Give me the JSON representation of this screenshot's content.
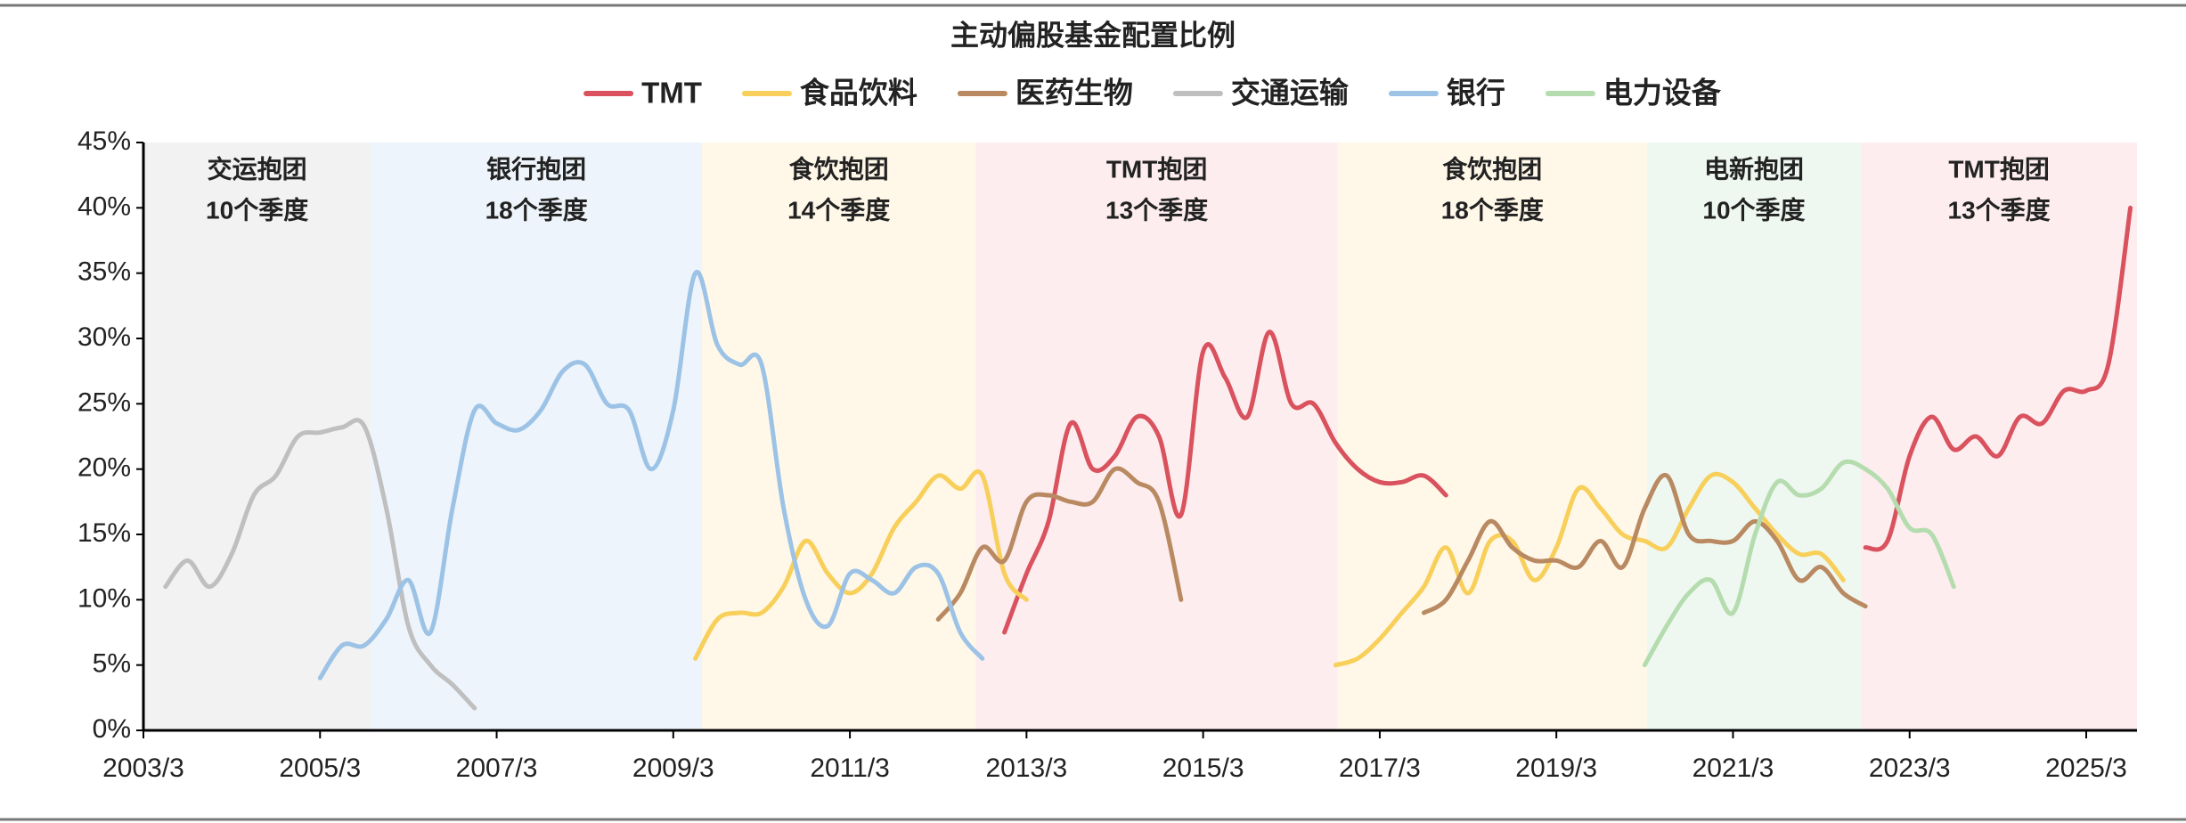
{
  "chart_data": {
    "type": "line",
    "title": "主动偏股基金配置比例",
    "categories": [
      "2003/3",
      null,
      null,
      null,
      null,
      null,
      null,
      null,
      "2005/3",
      null,
      null,
      null,
      null,
      null,
      null,
      null,
      "2007/3",
      null,
      null,
      null,
      null,
      null,
      null,
      null,
      "2009/3",
      null,
      null,
      null,
      null,
      null,
      null,
      null,
      "2011/3",
      null,
      null,
      null,
      null,
      null,
      null,
      null,
      "2013/3",
      null,
      null,
      null,
      null,
      null,
      null,
      null,
      "2015/3",
      null,
      null,
      null,
      null,
      null,
      null,
      null,
      "2017/3",
      null,
      null,
      null,
      null,
      null,
      null,
      null,
      "2019/3",
      null,
      null,
      null,
      null,
      null,
      null,
      null,
      "2021/3",
      null,
      null,
      null,
      null,
      null,
      null,
      null,
      "2023/3",
      null,
      null,
      null,
      null,
      null,
      null,
      null,
      "2025/3",
      null,
      null
    ],
    "series": [
      {
        "name": "TMT",
        "color": "#d9525e",
        "values": [
          null,
          null,
          null,
          null,
          null,
          null,
          null,
          null,
          null,
          null,
          null,
          null,
          null,
          null,
          null,
          null,
          null,
          null,
          null,
          null,
          null,
          null,
          null,
          null,
          null,
          null,
          null,
          null,
          null,
          null,
          null,
          null,
          null,
          null,
          null,
          null,
          null,
          null,
          null,
          7.5,
          12,
          16,
          23.5,
          20,
          21,
          24,
          22.5,
          16.5,
          29,
          27,
          24,
          30.5,
          25,
          25,
          22,
          20,
          19,
          19,
          19.5,
          18,
          null,
          null,
          null,
          null,
          null,
          null,
          null,
          null,
          null,
          null,
          null,
          null,
          null,
          null,
          null,
          null,
          null,
          null,
          14,
          14.5,
          21,
          24,
          21.5,
          22.5,
          21,
          24,
          23.5,
          26,
          26,
          28,
          40
        ]
      },
      {
        "name": "食品饮料",
        "color": "#f8cf5a",
        "values": [
          null,
          null,
          null,
          null,
          null,
          null,
          null,
          null,
          null,
          null,
          null,
          null,
          null,
          null,
          null,
          null,
          null,
          null,
          null,
          null,
          null,
          null,
          null,
          null,
          null,
          5.5,
          8.5,
          9,
          9,
          11,
          14.5,
          12,
          10.5,
          12,
          15.5,
          17.5,
          19.5,
          18.5,
          19.5,
          12,
          10,
          null,
          null,
          null,
          null,
          null,
          null,
          null,
          null,
          null,
          null,
          null,
          null,
          null,
          5,
          5.5,
          7,
          9,
          11,
          14,
          10.5,
          14.5,
          14.5,
          11.5,
          14,
          18.5,
          17,
          15,
          14.5,
          14,
          17,
          19.5,
          19,
          17,
          15,
          13.5,
          13.5,
          11.5,
          null,
          null,
          null,
          null,
          null,
          null,
          null,
          null,
          null,
          null,
          null,
          null,
          null
        ]
      },
      {
        "name": "医药生物",
        "color": "#b98a62",
        "values": [
          null,
          null,
          null,
          null,
          null,
          null,
          null,
          null,
          null,
          null,
          null,
          null,
          null,
          null,
          null,
          null,
          null,
          null,
          null,
          null,
          null,
          null,
          null,
          null,
          null,
          null,
          null,
          null,
          null,
          null,
          null,
          null,
          null,
          null,
          null,
          null,
          8.5,
          10.5,
          14,
          13,
          17.5,
          18,
          17.5,
          17.5,
          20,
          19,
          17.5,
          10,
          null,
          null,
          null,
          null,
          null,
          null,
          null,
          null,
          null,
          null,
          9,
          10,
          13,
          16,
          14,
          13,
          13,
          12.5,
          14.5,
          12.5,
          17,
          19.5,
          15,
          14.5,
          14.5,
          16,
          14.5,
          11.5,
          12.5,
          10.5,
          9.5,
          null,
          null,
          null,
          null,
          null,
          null,
          null,
          null,
          null,
          null,
          null,
          null
        ]
      },
      {
        "name": "交通运输",
        "color": "#bfbfbf",
        "values": [
          null,
          11,
          13,
          11,
          13.5,
          18,
          19.5,
          22.5,
          22.8,
          23.2,
          23.3,
          17,
          8,
          5,
          3.5,
          1.7,
          null,
          null,
          null,
          null,
          null,
          null,
          null,
          null,
          null,
          null,
          null,
          null,
          null,
          null,
          null,
          null,
          null,
          null,
          null,
          null,
          null,
          null,
          null,
          null,
          null,
          null,
          null,
          null,
          null,
          null,
          null,
          null,
          null,
          null,
          null,
          null,
          null,
          null,
          null,
          null,
          null,
          null,
          null,
          null,
          null,
          null,
          null,
          null,
          null,
          null,
          null,
          null,
          null,
          null,
          null,
          null,
          null,
          null,
          null,
          null,
          null,
          null,
          null,
          null,
          null,
          null,
          null,
          null,
          null,
          null,
          null,
          null,
          null,
          null,
          null
        ]
      },
      {
        "name": "银行",
        "color": "#9cc3e6",
        "values": [
          null,
          null,
          null,
          null,
          null,
          null,
          null,
          null,
          4,
          6.5,
          6.5,
          8.5,
          11.5,
          7.5,
          17,
          24.5,
          23.5,
          23,
          24.5,
          27.5,
          28,
          25,
          24.5,
          20,
          24.5,
          35,
          29.5,
          28,
          28,
          17,
          10,
          8,
          12,
          11.5,
          10.5,
          12.5,
          12,
          7.5,
          5.5,
          null,
          null,
          null,
          null,
          null,
          null,
          null,
          null,
          null,
          null,
          null,
          null,
          null,
          null,
          null,
          null,
          null,
          null,
          null,
          null,
          null,
          null,
          null,
          null,
          null,
          null,
          null,
          null,
          null,
          null,
          null,
          null,
          null,
          null,
          null,
          null,
          null,
          null,
          null,
          null,
          null,
          null,
          null,
          null,
          null,
          null,
          null,
          null,
          null,
          null,
          null,
          null
        ]
      },
      {
        "name": "电力设备",
        "color": "#b5dcae",
        "values": [
          null,
          null,
          null,
          null,
          null,
          null,
          null,
          null,
          null,
          null,
          null,
          null,
          null,
          null,
          null,
          null,
          null,
          null,
          null,
          null,
          null,
          null,
          null,
          null,
          null,
          null,
          null,
          null,
          null,
          null,
          null,
          null,
          null,
          null,
          null,
          null,
          null,
          null,
          null,
          null,
          null,
          null,
          null,
          null,
          null,
          null,
          null,
          null,
          null,
          null,
          null,
          null,
          null,
          null,
          null,
          null,
          null,
          null,
          null,
          null,
          null,
          null,
          null,
          null,
          null,
          null,
          null,
          null,
          5,
          8,
          10.5,
          11.5,
          9,
          15,
          19,
          18,
          18.5,
          20.5,
          20,
          18.5,
          15.5,
          15,
          11,
          null,
          null,
          null,
          null,
          null,
          null,
          null,
          null
        ]
      }
    ],
    "periods": [
      {
        "label": "交运抱团",
        "duration": "10个季度",
        "start": 0,
        "end": 10.3,
        "color": "#f2f2f2"
      },
      {
        "label": "银行抱团",
        "duration": "18个季度",
        "start": 10.3,
        "end": 25.3,
        "color": "#eef4fb"
      },
      {
        "label": "食饮抱团",
        "duration": "14个季度",
        "start": 25.3,
        "end": 37.7,
        "color": "#fff8e9"
      },
      {
        "label": "TMT抱团",
        "duration": "13个季度",
        "start": 37.7,
        "end": 54.1,
        "color": "#fdedef"
      },
      {
        "label": "食饮抱团",
        "duration": "18个季度",
        "start": 54.1,
        "end": 68.1,
        "color": "#fff8e9"
      },
      {
        "label": "电新抱团",
        "duration": "10个季度",
        "start": 68.1,
        "end": 77.8,
        "color": "#eef8f1"
      },
      {
        "label": "TMT抱团",
        "duration": "13个季度",
        "start": 77.8,
        "end": 90.3,
        "color": "#fdedef"
      }
    ],
    "ylim": [
      0,
      45
    ],
    "yticks": [
      {
        "value": 0,
        "label": "0%"
      },
      {
        "value": 5,
        "label": "5%"
      },
      {
        "value": 10,
        "label": "10%"
      },
      {
        "value": 15,
        "label": "15%"
      },
      {
        "value": 20,
        "label": "20%"
      },
      {
        "value": 25,
        "label": "25%"
      },
      {
        "value": 30,
        "label": "30%"
      },
      {
        "value": 35,
        "label": "35%"
      },
      {
        "value": 40,
        "label": "40%"
      },
      {
        "value": 45,
        "label": "45%"
      }
    ],
    "grid": false,
    "legend": "top"
  }
}
